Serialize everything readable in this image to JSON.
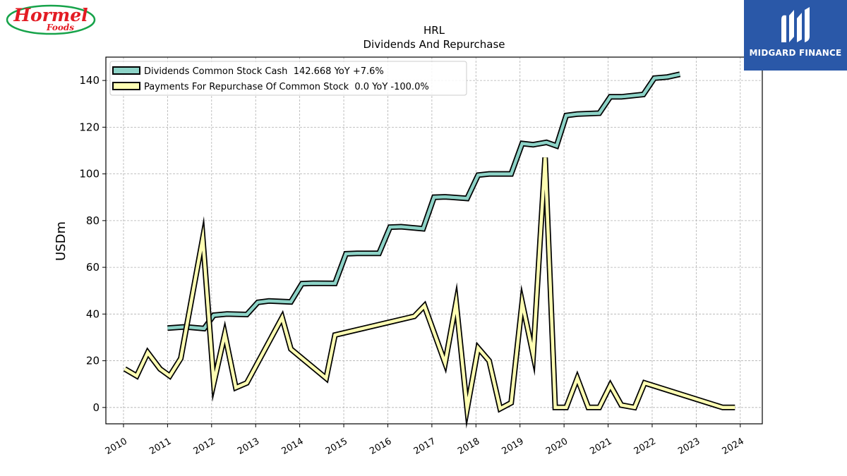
{
  "logos": {
    "hormel_main": "Hormel",
    "hormel_sub": "Foods",
    "midgard": "MIDGARD FINANCE"
  },
  "chart_data": {
    "type": "line",
    "title": "HRL",
    "subtitle": "Dividends And Repurchase",
    "ylabel": "USDm",
    "xlabel": "",
    "xlim": [
      2009.6,
      2024.5
    ],
    "ylim": [
      -7,
      150
    ],
    "yticks": [
      0,
      20,
      40,
      60,
      80,
      100,
      120,
      140
    ],
    "xticks": [
      "2010",
      "2011",
      "2012",
      "2013",
      "2014",
      "2015",
      "2016",
      "2017",
      "2018",
      "2019",
      "2020",
      "2021",
      "2022",
      "2023",
      "2024"
    ],
    "grid": true,
    "legend_position": "top-left",
    "series": [
      {
        "name": "Dividends Common Stock Cash  142.668 YoY +7.6%",
        "color": "#8dd3c7",
        "x": [
          2011.0,
          2011.4,
          2011.83,
          2012.05,
          2012.35,
          2012.8,
          2013.05,
          2013.3,
          2013.8,
          2014.05,
          2014.3,
          2014.8,
          2015.05,
          2015.3,
          2015.8,
          2016.05,
          2016.3,
          2016.8,
          2017.05,
          2017.3,
          2017.8,
          2018.05,
          2018.3,
          2018.8,
          2019.05,
          2019.3,
          2019.6,
          2019.83,
          2020.05,
          2020.3,
          2020.8,
          2021.05,
          2021.3,
          2021.8,
          2022.05,
          2022.35,
          2022.63
        ],
        "y": [
          34.0,
          34.5,
          33.8,
          39.5,
          40.0,
          39.8,
          45.0,
          45.6,
          45.2,
          53.0,
          53.2,
          53.1,
          65.8,
          66.0,
          66.0,
          77.2,
          77.4,
          76.5,
          90.0,
          90.2,
          89.5,
          99.5,
          100.0,
          100.0,
          113.0,
          112.5,
          113.5,
          112.0,
          125.0,
          125.6,
          126.0,
          133.0,
          133.0,
          134.0,
          141.0,
          141.5,
          142.668
        ]
      },
      {
        "name": "Payments For Repurchase Of Common Stock  0.0 YoY -100.0%",
        "color": "#ffffb3",
        "x": [
          2010.03,
          2010.3,
          2010.55,
          2010.83,
          2011.05,
          2011.3,
          2011.8,
          2012.05,
          2012.3,
          2012.55,
          2012.8,
          2013.6,
          2013.8,
          2014.6,
          2014.8,
          2016.6,
          2016.83,
          2017.3,
          2017.55,
          2017.8,
          2018.05,
          2018.3,
          2018.55,
          2018.8,
          2019.05,
          2019.3,
          2019.57,
          2019.8,
          2020.05,
          2020.3,
          2020.55,
          2020.8,
          2021.05,
          2021.3,
          2021.6,
          2021.83,
          2023.6,
          2023.88
        ],
        "y": [
          16.5,
          13.5,
          23.5,
          16.5,
          13.5,
          21.0,
          72.5,
          10.5,
          31.5,
          8.5,
          10.5,
          38.5,
          25.0,
          12.5,
          31.0,
          39.0,
          43.5,
          19.0,
          45.0,
          -0.5,
          25.5,
          20.0,
          -0.5,
          2.0,
          45.0,
          22.5,
          107.0,
          0.0,
          0.0,
          12.5,
          0.0,
          0.0,
          9.5,
          1.0,
          0.0,
          10.5,
          0.0,
          0.0
        ]
      }
    ]
  }
}
